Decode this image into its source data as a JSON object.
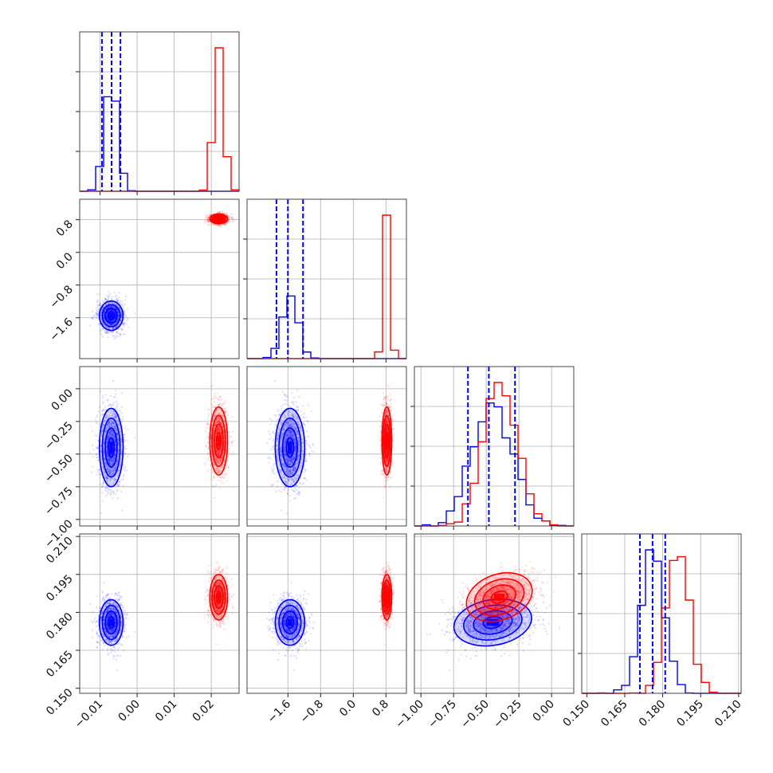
{
  "chart_data": {
    "type": "corner",
    "grid": true,
    "series": [
      {
        "name": "",
        "color": "#0000ff",
        "mean": [
          -0.007,
          -1.55,
          -0.45,
          0.176
        ],
        "std": [
          0.0016,
          0.18,
          0.15,
          0.0045
        ],
        "corr_34": 0.2,
        "quantiles": [
          [
            -0.0095,
            -0.0069,
            -0.0045
          ],
          [
            -1.88,
            -1.6,
            -1.23
          ],
          [
            -0.64,
            -0.48,
            -0.28
          ],
          [
            0.171,
            0.176,
            0.181
          ]
        ]
      },
      {
        "name": "",
        "color": "#ff0000",
        "mean": [
          0.022,
          0.82,
          -0.4,
          0.186
        ],
        "std": [
          0.0012,
          0.06,
          0.13,
          0.0045
        ],
        "corr_34": 0.35
      }
    ],
    "ranges": [
      [
        -0.0155,
        0.0275
      ],
      [
        -2.6,
        1.3
      ],
      [
        -1.05,
        0.17
      ],
      [
        0.148,
        0.211
      ]
    ],
    "tick_values": [
      [
        -0.01,
        0.0,
        0.01,
        0.02
      ],
      [
        -1.6,
        -0.8,
        0.0,
        0.8
      ],
      [
        -1.0,
        -0.75,
        -0.5,
        -0.25,
        0.0
      ],
      [
        0.15,
        0.165,
        0.18,
        0.195,
        0.21
      ]
    ],
    "tick_labels": [
      [
        "−0.01",
        "0.00",
        "0.01",
        "0.02"
      ],
      [
        "−1.6",
        "−0.8",
        "0.0",
        "0.8"
      ],
      [
        "−1.00",
        "−0.75",
        "−0.50",
        "−0.25",
        "0.00"
      ],
      [
        "0.150",
        "0.165",
        "0.180",
        "0.195",
        "0.210"
      ]
    ],
    "histogram_bins": 20,
    "contour_levels": [
      0.5,
      1.0,
      1.5,
      2.0
    ]
  }
}
